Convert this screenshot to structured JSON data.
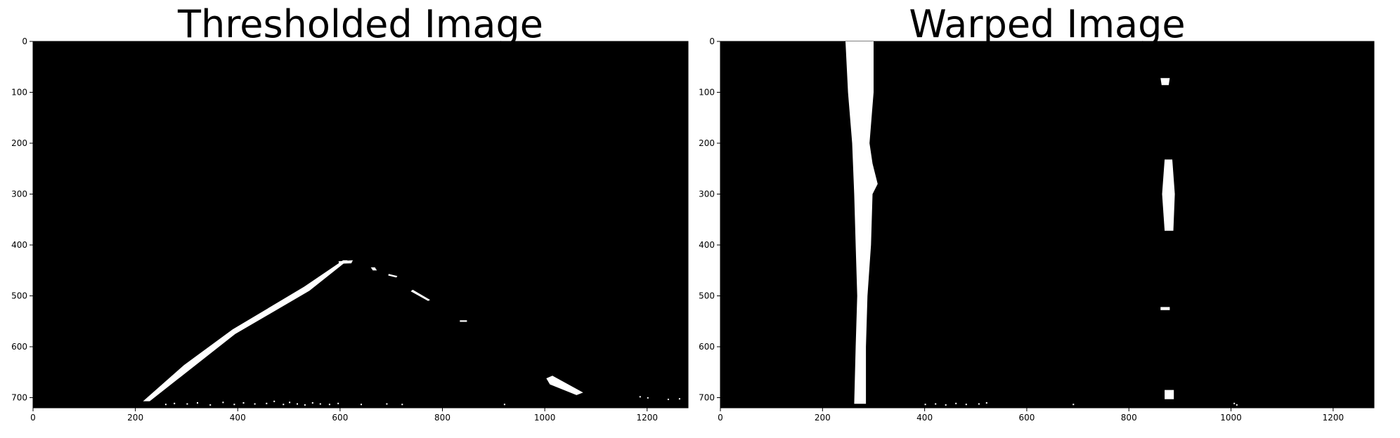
{
  "colors": {
    "background": "#000000",
    "foreground": "#ffffff",
    "axis": "#000000"
  },
  "chart_data": [
    {
      "type": "heatmap",
      "title": "Thresholded Image",
      "xlabel": "",
      "ylabel": "",
      "xlim": [
        0,
        1280
      ],
      "ylim": [
        720,
        0
      ],
      "grid": false,
      "x_ticks": [
        0,
        200,
        400,
        600,
        800,
        1000,
        1200
      ],
      "y_ticks": [
        0,
        100,
        200,
        300,
        400,
        500,
        600,
        700
      ],
      "white_regions": [
        {
          "name": "left-lane-line",
          "points": [
            [
              215,
              707
            ],
            [
              228,
              707
            ],
            [
              395,
              575
            ],
            [
              540,
              490
            ],
            [
              615,
              430
            ],
            [
              606,
              430
            ],
            [
              530,
              482
            ],
            [
              390,
              566
            ],
            [
              295,
              636
            ]
          ]
        },
        {
          "name": "apex-blob",
          "points": [
            [
              597,
              432
            ],
            [
              625,
              430
            ],
            [
              622,
              436
            ],
            [
              598,
              437
            ]
          ]
        },
        {
          "name": "right-dash-1",
          "points": [
            [
              660,
              444
            ],
            [
              668,
              444
            ],
            [
              672,
              450
            ],
            [
              664,
              450
            ]
          ]
        },
        {
          "name": "right-dash-2",
          "points": [
            [
              695,
              457
            ],
            [
              712,
              461
            ],
            [
              710,
              464
            ],
            [
              694,
              460
            ]
          ]
        },
        {
          "name": "right-dash-3",
          "points": [
            [
              742,
              488
            ],
            [
              776,
              508
            ],
            [
              772,
              510
            ],
            [
              738,
              491
            ]
          ]
        },
        {
          "name": "right-dash-4",
          "points": [
            [
              834,
              548
            ],
            [
              848,
              548
            ],
            [
              848,
              551
            ],
            [
              834,
              551
            ]
          ]
        },
        {
          "name": "right-lane-near",
          "points": [
            [
              1003,
              662
            ],
            [
              1015,
              657
            ],
            [
              1075,
              690
            ],
            [
              1062,
              695
            ],
            [
              1010,
              674
            ]
          ]
        }
      ],
      "noise_points": [
        [
          258,
          712
        ],
        [
          275,
          710
        ],
        [
          300,
          711
        ],
        [
          320,
          709
        ],
        [
          345,
          713
        ],
        [
          370,
          708
        ],
        [
          392,
          712
        ],
        [
          410,
          709
        ],
        [
          432,
          711
        ],
        [
          455,
          710
        ],
        [
          470,
          706
        ],
        [
          488,
          712
        ],
        [
          500,
          708
        ],
        [
          515,
          711
        ],
        [
          530,
          713
        ],
        [
          545,
          709
        ],
        [
          560,
          711
        ],
        [
          578,
          712
        ],
        [
          595,
          710
        ],
        [
          640,
          712
        ],
        [
          690,
          711
        ],
        [
          720,
          712
        ],
        [
          920,
          712
        ],
        [
          1185,
          697
        ],
        [
          1200,
          699
        ],
        [
          1240,
          702
        ],
        [
          1262,
          701
        ]
      ]
    },
    {
      "type": "heatmap",
      "title": "Warped Image",
      "xlabel": "",
      "ylabel": "",
      "xlim": [
        0,
        1280
      ],
      "ylim": [
        720,
        0
      ],
      "grid": false,
      "x_ticks": [
        0,
        200,
        400,
        600,
        800,
        1000,
        1200
      ],
      "y_ticks": [
        0,
        100,
        200,
        300,
        400,
        500,
        600,
        700
      ],
      "white_regions": [
        {
          "name": "left-lane-line",
          "points": [
            [
              245,
              0
            ],
            [
              300,
              0
            ],
            [
              300,
              100
            ],
            [
              292,
              200
            ],
            [
              298,
              240
            ],
            [
              308,
              280
            ],
            [
              298,
              300
            ],
            [
              295,
              400
            ],
            [
              288,
              500
            ],
            [
              285,
              600
            ],
            [
              285,
              712
            ],
            [
              262,
              712
            ],
            [
              265,
              600
            ],
            [
              268,
              500
            ],
            [
              265,
              400
            ],
            [
              262,
              300
            ],
            [
              258,
              200
            ],
            [
              250,
              100
            ]
          ]
        },
        {
          "name": "right-dash-top",
          "points": [
            [
              862,
              72
            ],
            [
              880,
              72
            ],
            [
              878,
              86
            ],
            [
              864,
              86
            ]
          ]
        },
        {
          "name": "right-dash-middle",
          "points": [
            [
              870,
              232
            ],
            [
              885,
              232
            ],
            [
              890,
              300
            ],
            [
              887,
              372
            ],
            [
              870,
              372
            ],
            [
              865,
              300
            ]
          ]
        },
        {
          "name": "right-dash-small",
          "points": [
            [
              862,
              522
            ],
            [
              880,
              522
            ],
            [
              880,
              528
            ],
            [
              862,
              528
            ]
          ]
        },
        {
          "name": "right-dash-bottom",
          "points": [
            [
              870,
              685
            ],
            [
              888,
              685
            ],
            [
              888,
              703
            ],
            [
              870,
              703
            ]
          ]
        }
      ],
      "noise_points": [
        [
          400,
          712
        ],
        [
          420,
          711
        ],
        [
          440,
          713
        ],
        [
          460,
          710
        ],
        [
          480,
          712
        ],
        [
          505,
          711
        ],
        [
          520,
          709
        ],
        [
          690,
          712
        ],
        [
          1005,
          710
        ],
        [
          1010,
          713
        ]
      ]
    }
  ]
}
